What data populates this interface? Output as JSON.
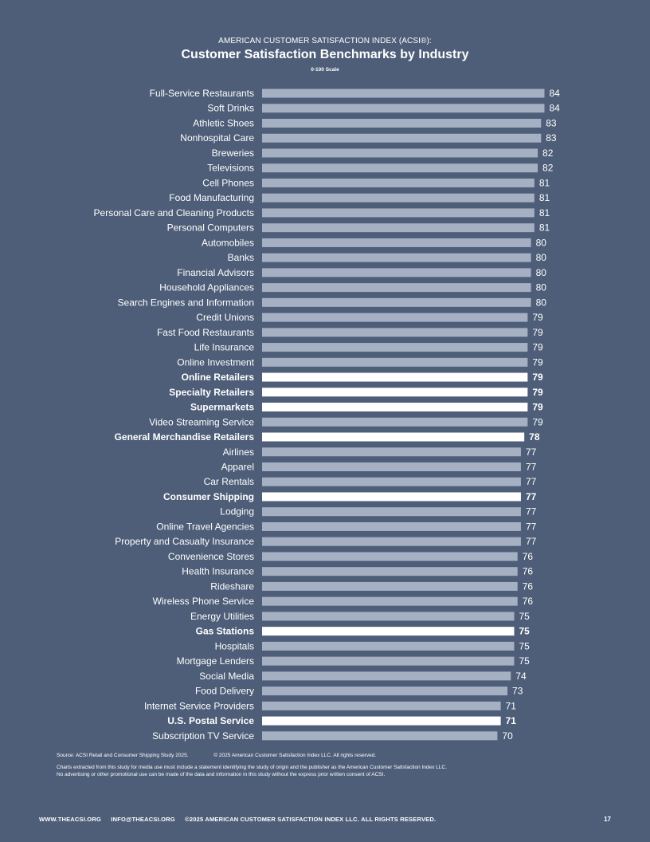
{
  "header": {
    "supertitle": "AMERICAN CUSTOMER SATISFACTION INDEX (ACSI®):",
    "title": "Customer Satisfaction Benchmarks by Industry",
    "subtitle": "0-100 Scale"
  },
  "chart_data": {
    "type": "bar",
    "orientation": "horizontal",
    "title": "Customer Satisfaction Benchmarks by Industry",
    "subtitle": "0-100 Scale",
    "xlim": [
      0,
      100
    ],
    "grid": false,
    "bar_color": "#a5b0c3",
    "highlight_color": "#ffffff",
    "categories": [
      "Full-Service Restaurants",
      "Soft Drinks",
      "Athletic Shoes",
      "Nonhospital Care",
      "Breweries",
      "Televisions",
      "Cell Phones",
      "Food Manufacturing",
      "Personal Care and Cleaning Products",
      "Personal Computers",
      "Automobiles",
      "Banks",
      "Financial Advisors",
      "Household Appliances",
      "Search Engines and Information",
      "Credit Unions",
      "Fast Food Restaurants",
      "Life Insurance",
      "Online Investment",
      "Online Retailers",
      "Specialty Retailers",
      "Supermarkets",
      "Video Streaming Service",
      "General Merchandise Retailers",
      "Airlines",
      "Apparel",
      "Car Rentals",
      "Consumer Shipping",
      "Lodging",
      "Online Travel Agencies",
      "Property and Casualty Insurance",
      "Convenience Stores",
      "Health Insurance",
      "Rideshare",
      "Wireless Phone Service",
      "Energy Utilities",
      "Gas Stations",
      "Hospitals",
      "Mortgage Lenders",
      "Social Media",
      "Food Delivery",
      "Internet Service Providers",
      "U.S. Postal Service",
      "Subscription TV Service"
    ],
    "values": [
      84,
      84,
      83,
      83,
      82,
      82,
      81,
      81,
      81,
      81,
      80,
      80,
      80,
      80,
      80,
      79,
      79,
      79,
      79,
      79,
      79,
      79,
      79,
      78,
      77,
      77,
      77,
      77,
      77,
      77,
      77,
      76,
      76,
      76,
      76,
      75,
      75,
      75,
      75,
      74,
      73,
      71,
      71,
      70
    ],
    "highlighted": [
      "Online Retailers",
      "Specialty Retailers",
      "Supermarkets",
      "General Merchandise Retailers",
      "Consumer Shipping",
      "Gas Stations",
      "U.S. Postal Service"
    ]
  },
  "footnotes": {
    "source": "Source: ACSI Retail and Consumer Shipping Study 2025.",
    "copyright": "© 2025 American Customer Satisfaction Index LLC. All rights reserved.",
    "media_line1": "Charts extracted from this study for media use must include a statement identifying the study of origin and the publisher as the American Customer Satisfaction Index LLC.",
    "media_line2": "No advertising or other promotional use can be made of the data and information in this study without the express prior written consent of ACSI."
  },
  "footer": {
    "website": "WWW.THEACSI.ORG",
    "email": "INFO@THEACSI.ORG",
    "copyright": "©2025 AMERICAN CUSTOMER SATISFACTION INDEX LLC. ALL RIGHTS RESERVED.",
    "page_number": "17"
  }
}
